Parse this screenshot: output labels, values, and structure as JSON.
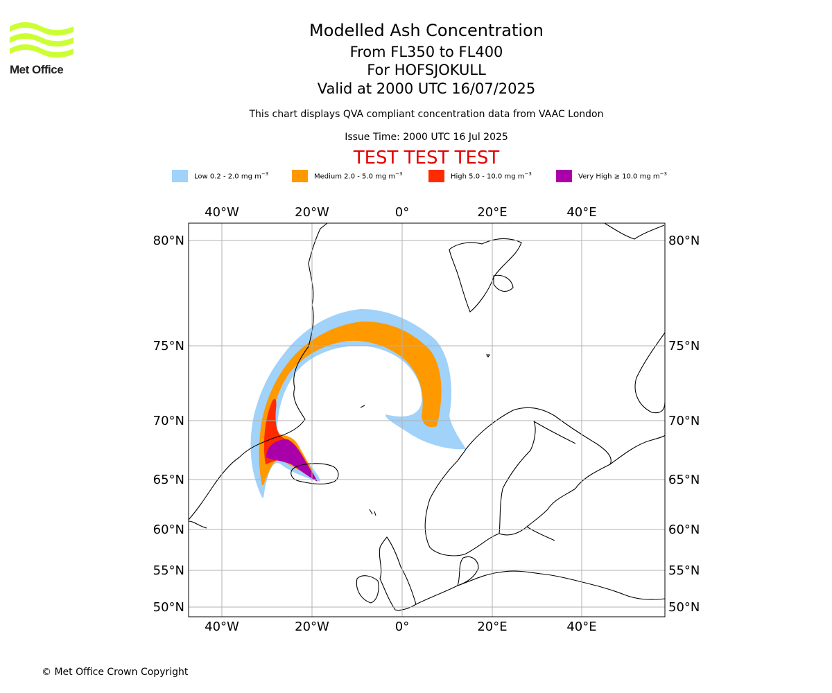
{
  "logo": {
    "text": "Met Office",
    "color": "#ccff33"
  },
  "header": {
    "title": "Modelled Ash Concentration",
    "flight_levels": "From FL350 to FL400",
    "volcano": "For HOFSJOKULL",
    "valid": "Valid at 2000 UTC 16/07/2025",
    "note": "This chart displays QVA compliant concentration data from VAAC London",
    "issue_time": "Issue Time: 2000 UTC 16 Jul 2025",
    "test_banner": "TEST TEST TEST",
    "test_color": "#e50000"
  },
  "legend": [
    {
      "label": "Low 0.2 - 2.0 mg m",
      "unit_exp": "−3",
      "color": "#a0d2fa"
    },
    {
      "label": "Medium 2.0 - 5.0 mg m",
      "unit_exp": "−3",
      "color": "#ff9900"
    },
    {
      "label": "High 5.0 - 10.0 mg m",
      "unit_exp": "−3",
      "color": "#ff2a00"
    },
    {
      "label": "Very High  ≥  10.0 mg m",
      "unit_exp": "−3",
      "color": "#aa00aa"
    }
  ],
  "map": {
    "lon_ticks": [
      "40°W",
      "20°W",
      "0°",
      "20°E",
      "40°E"
    ],
    "lat_ticks": [
      "80°N",
      "75°N",
      "70°N",
      "65°N",
      "60°N",
      "55°N",
      "50°N"
    ]
  },
  "footer": {
    "copyright": "© Met Office Crown Copyright"
  }
}
